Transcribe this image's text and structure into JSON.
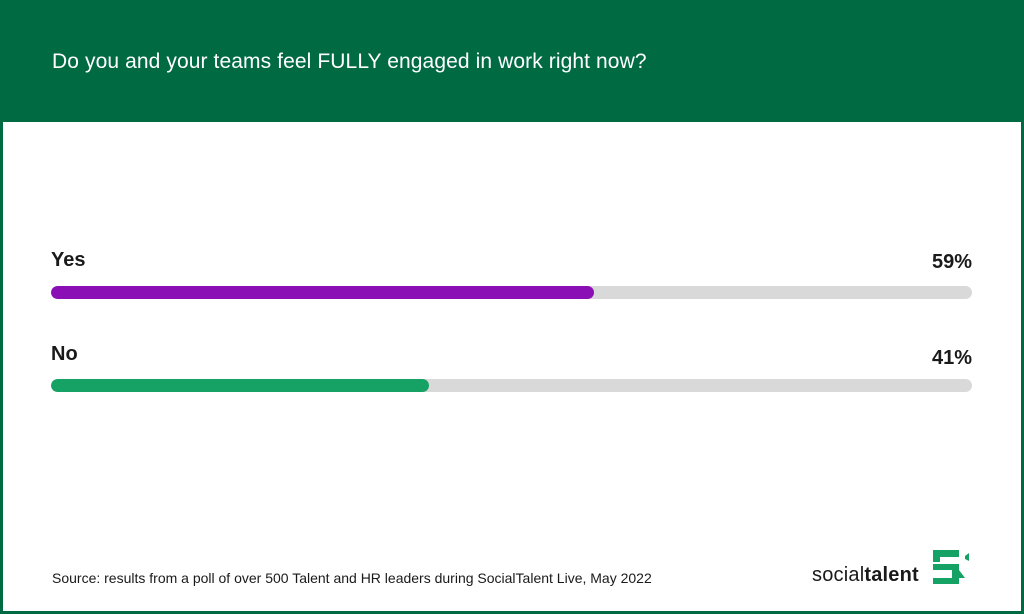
{
  "colors": {
    "header_bg": "#006a43",
    "track": "#d9d9d9"
  },
  "header": {
    "title": "Do you and your teams feel FULLY engaged in work right now?"
  },
  "chart_data": {
    "type": "bar",
    "orientation": "horizontal",
    "title": "Do you and your teams feel FULLY engaged in work right now?",
    "categories": [
      "Yes",
      "No"
    ],
    "values": [
      59,
      41
    ],
    "value_labels": [
      "59%",
      "41%"
    ],
    "bar_colors": [
      "#8a0fb5",
      "#16a264"
    ],
    "xlim": [
      0,
      100
    ],
    "grid": false,
    "legend": "none"
  },
  "footer": {
    "source": "Source: results from a poll of over 500 Talent and HR leaders during SocialTalent Live, May 2022"
  },
  "logo": {
    "text_regular": "social",
    "text_bold": "talent",
    "icon": "socialtalent-chat-icon",
    "color": "#16a264"
  }
}
